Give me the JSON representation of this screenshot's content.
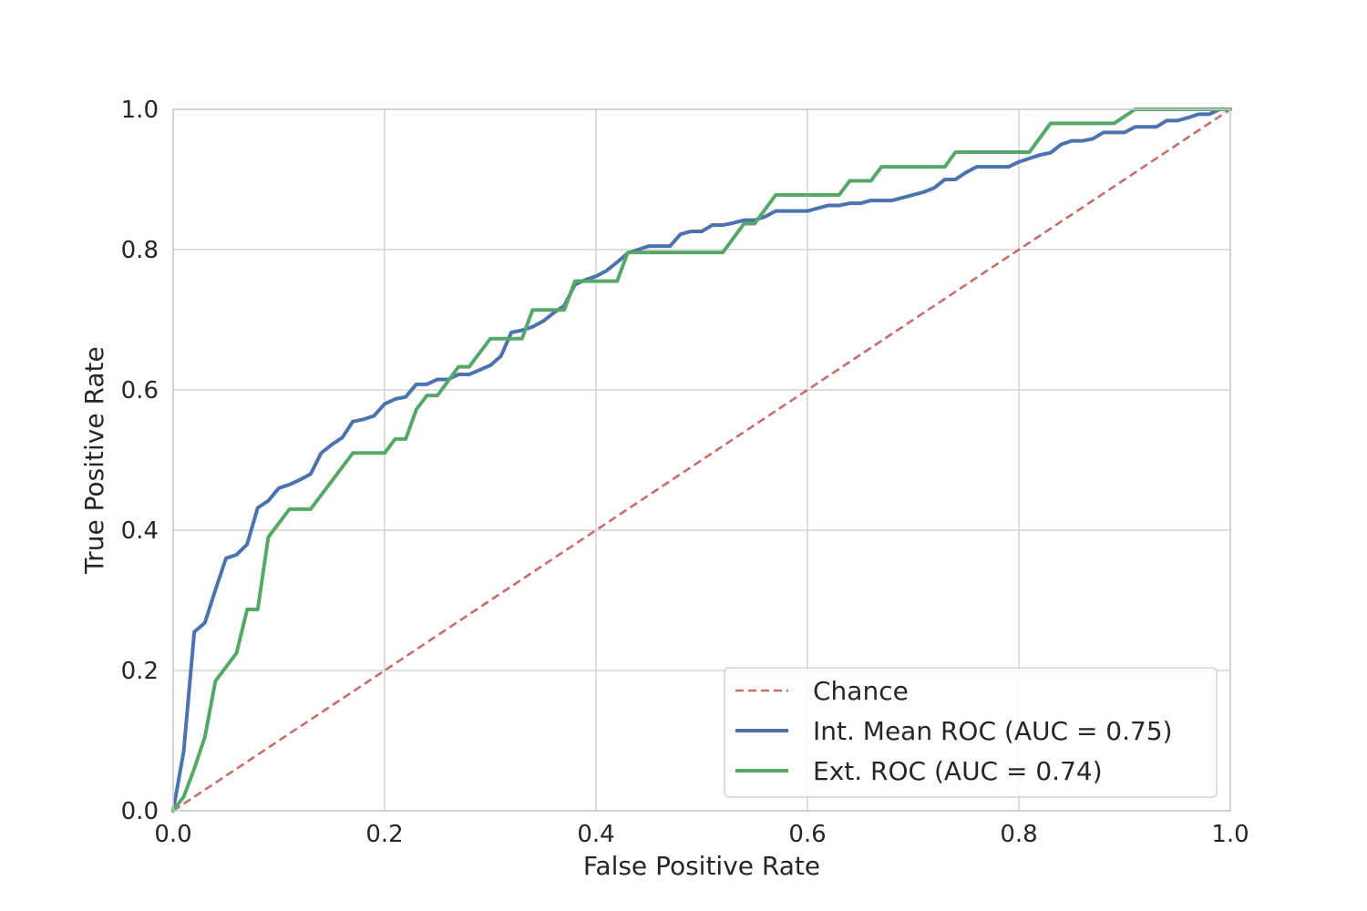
{
  "chart_data": {
    "type": "line",
    "title": "",
    "xlabel": "False Positive Rate",
    "ylabel": "True Positive Rate",
    "xlim": [
      0.0,
      1.0
    ],
    "ylim": [
      0.0,
      1.0
    ],
    "xticks": [
      0.0,
      0.2,
      0.4,
      0.6,
      0.8,
      1.0
    ],
    "yticks": [
      0.0,
      0.2,
      0.4,
      0.6,
      0.8,
      1.0
    ],
    "xtick_labels": [
      "0.0",
      "0.2",
      "0.4",
      "0.6",
      "0.8",
      "1.0"
    ],
    "ytick_labels": [
      "0.0",
      "0.2",
      "0.4",
      "0.6",
      "0.8",
      "1.0"
    ],
    "grid": true,
    "legend_position": "bottom-right",
    "series": [
      {
        "name": "Chance",
        "color": "#c96c6c",
        "style": "dashed",
        "x": [
          0.0,
          1.0
        ],
        "y": [
          0.0,
          1.0
        ]
      },
      {
        "name": "Int. Mean ROC (AUC = 0.75)",
        "color": "#4c72b0",
        "style": "solid",
        "x": [
          0.0,
          0.01,
          0.02,
          0.03,
          0.04,
          0.05,
          0.06,
          0.07,
          0.08,
          0.09,
          0.1,
          0.11,
          0.12,
          0.13,
          0.14,
          0.15,
          0.16,
          0.17,
          0.18,
          0.19,
          0.2,
          0.21,
          0.22,
          0.23,
          0.24,
          0.25,
          0.26,
          0.27,
          0.28,
          0.3,
          0.31,
          0.32,
          0.33,
          0.34,
          0.35,
          0.36,
          0.37,
          0.38,
          0.39,
          0.4,
          0.41,
          0.42,
          0.43,
          0.44,
          0.45,
          0.46,
          0.47,
          0.48,
          0.49,
          0.5,
          0.51,
          0.52,
          0.53,
          0.54,
          0.55,
          0.56,
          0.57,
          0.58,
          0.6,
          0.62,
          0.63,
          0.64,
          0.65,
          0.66,
          0.68,
          0.7,
          0.71,
          0.72,
          0.73,
          0.74,
          0.75,
          0.76,
          0.78,
          0.79,
          0.8,
          0.81,
          0.82,
          0.83,
          0.84,
          0.85,
          0.86,
          0.87,
          0.88,
          0.9,
          0.91,
          0.92,
          0.93,
          0.94,
          0.95,
          0.96,
          0.97,
          0.98,
          0.99,
          1.0
        ],
        "y": [
          0.0,
          0.085,
          0.255,
          0.268,
          0.315,
          0.36,
          0.365,
          0.38,
          0.432,
          0.442,
          0.46,
          0.465,
          0.472,
          0.48,
          0.51,
          0.522,
          0.532,
          0.555,
          0.558,
          0.563,
          0.58,
          0.587,
          0.59,
          0.608,
          0.608,
          0.615,
          0.615,
          0.622,
          0.622,
          0.635,
          0.648,
          0.682,
          0.685,
          0.69,
          0.698,
          0.71,
          0.72,
          0.75,
          0.757,
          0.762,
          0.77,
          0.782,
          0.795,
          0.8,
          0.805,
          0.805,
          0.805,
          0.822,
          0.826,
          0.826,
          0.835,
          0.835,
          0.838,
          0.842,
          0.842,
          0.847,
          0.855,
          0.855,
          0.855,
          0.863,
          0.863,
          0.866,
          0.866,
          0.87,
          0.87,
          0.878,
          0.882,
          0.888,
          0.9,
          0.9,
          0.91,
          0.918,
          0.918,
          0.918,
          0.925,
          0.93,
          0.935,
          0.938,
          0.95,
          0.955,
          0.955,
          0.958,
          0.967,
          0.967,
          0.975,
          0.975,
          0.975,
          0.984,
          0.984,
          0.988,
          0.993,
          0.993,
          1.0,
          1.0
        ]
      },
      {
        "name": "Ext. ROC (AUC = 0.74)",
        "color": "#55a868",
        "style": "solid",
        "x": [
          0.0,
          0.01,
          0.02,
          0.03,
          0.04,
          0.05,
          0.06,
          0.07,
          0.08,
          0.09,
          0.1,
          0.11,
          0.13,
          0.17,
          0.2,
          0.21,
          0.22,
          0.23,
          0.24,
          0.25,
          0.27,
          0.28,
          0.3,
          0.33,
          0.34,
          0.37,
          0.38,
          0.42,
          0.43,
          0.52,
          0.54,
          0.55,
          0.57,
          0.63,
          0.64,
          0.66,
          0.67,
          0.73,
          0.74,
          0.81,
          0.83,
          0.89,
          0.91,
          1.0
        ],
        "y": [
          0.0,
          0.02,
          0.06,
          0.105,
          0.185,
          0.205,
          0.225,
          0.287,
          0.287,
          0.39,
          0.41,
          0.43,
          0.43,
          0.51,
          0.51,
          0.53,
          0.53,
          0.572,
          0.592,
          0.592,
          0.633,
          0.633,
          0.673,
          0.673,
          0.714,
          0.714,
          0.755,
          0.755,
          0.796,
          0.796,
          0.837,
          0.837,
          0.878,
          0.878,
          0.898,
          0.898,
          0.918,
          0.918,
          0.939,
          0.939,
          0.98,
          0.98,
          1.0,
          1.0
        ]
      }
    ]
  }
}
